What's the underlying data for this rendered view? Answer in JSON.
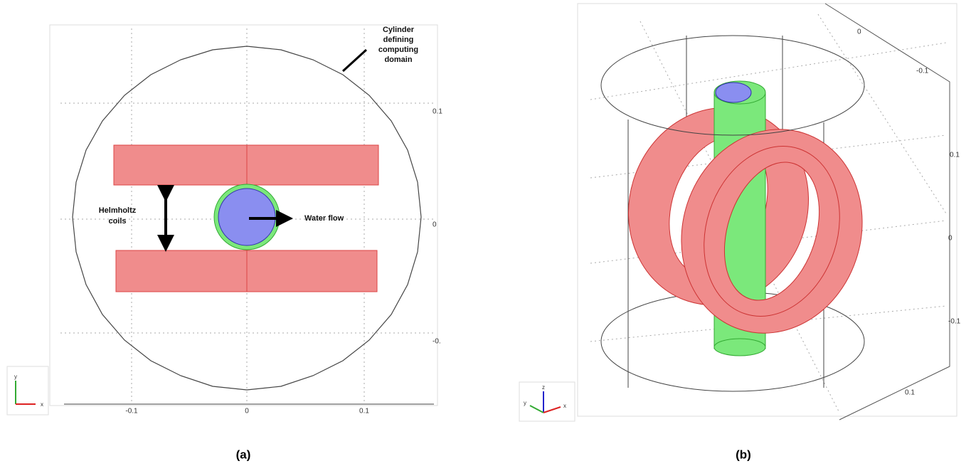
{
  "panel_a": {
    "label": "(a)",
    "cylinder_note": [
      "Cylinder",
      "defining",
      "computing",
      "domain"
    ],
    "coils_note": [
      "Helmholtz",
      "coils"
    ],
    "flow_note": "Water flow",
    "x_ticks": [
      "-0.1",
      "0",
      "0.1"
    ],
    "y_ticks": [
      "0.1",
      "0",
      "-0."
    ],
    "axes": [
      "y",
      "x"
    ]
  },
  "panel_b": {
    "label": "(b)",
    "ticks": [
      "0",
      "-0.1",
      "0.1",
      "0",
      "-0.1",
      "0.1"
    ],
    "axes": [
      "z",
      "y",
      "x"
    ]
  }
}
